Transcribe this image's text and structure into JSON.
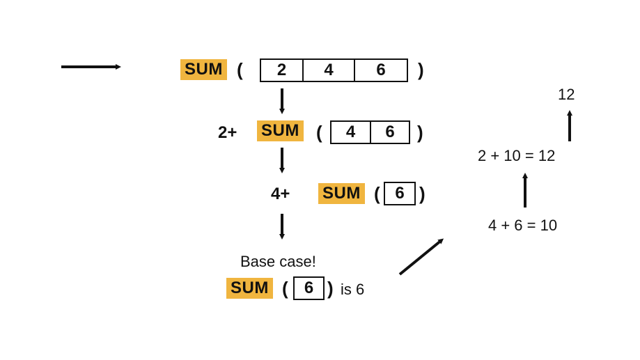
{
  "colors": {
    "highlight": "#f0b53f",
    "ink": "#111111"
  },
  "sum_label": "SUM",
  "open_paren": "(",
  "close_paren": ")",
  "row1": {
    "values": [
      "2",
      "4",
      "6"
    ]
  },
  "row2": {
    "prefix": "2+",
    "values": [
      "4",
      "6"
    ]
  },
  "row3": {
    "prefix": "4+",
    "values": [
      "6"
    ]
  },
  "base": {
    "title": "Base case!",
    "values": [
      "6"
    ],
    "suffix": "is 6"
  },
  "results": {
    "final": "12",
    "step2": "2 + 10 = 12",
    "step1": "4 + 6 = 10"
  }
}
